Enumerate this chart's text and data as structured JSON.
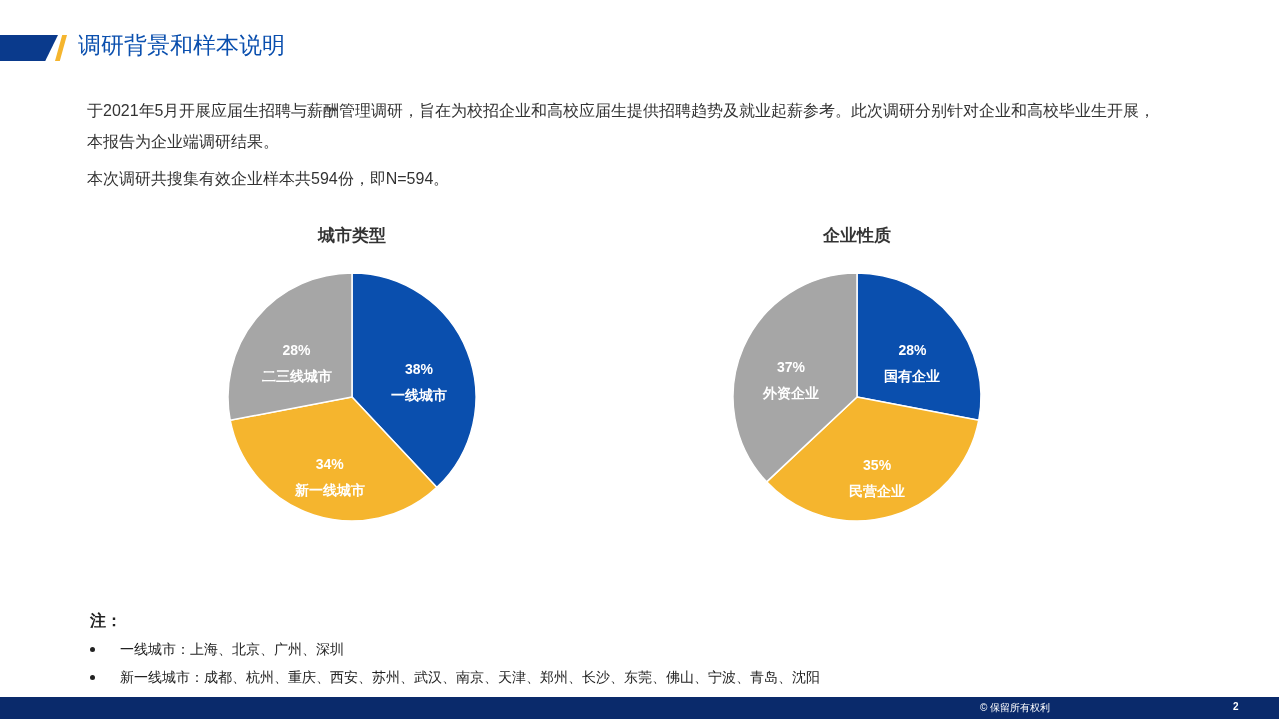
{
  "chart_data": [
    {
      "type": "other",
      "title": "调研背景和样本说明",
      "annotations": [
        "于2021年5月开展应届生招聘与薪酬管理调研，旨在为校招企业和高校应届生提供招聘趋势及就业起薪参考。此次调研分别针对企业和高校毕业生开展，本报告为企业端调研结果。",
        "本次调研共搜集有效企业样本共594份，即N=594。"
      ]
    },
    {
      "type": "pie",
      "title": "城市类型",
      "categories": [
        "一线城市",
        "新一线城市",
        "二三线城市"
      ],
      "values": [
        38,
        34,
        28
      ],
      "value_labels": [
        "38%",
        "34%",
        "28%"
      ],
      "colors": [
        "#0a4fae",
        "#f5b52e",
        "#a6a6a6"
      ],
      "legend": false
    },
    {
      "type": "pie",
      "title": "企业性质",
      "categories": [
        "国有企业",
        "民营企业",
        "外资企业"
      ],
      "values": [
        28,
        35,
        37
      ],
      "value_labels": [
        "28%",
        "35%",
        "37%"
      ],
      "colors": [
        "#0a4fae",
        "#f5b52e",
        "#a6a6a6"
      ],
      "legend": false
    },
    {
      "type": "other",
      "title": "注：",
      "annotations": [
        "一线城市：上海、北京、广州、深圳",
        "新一线城市：成都、杭州、重庆、西安、苏州、武汉、南京、天津、郑州、长沙、东莞、佛山、宁波、青岛、沈阳",
        "© 保留所有权利",
        "2"
      ]
    }
  ]
}
